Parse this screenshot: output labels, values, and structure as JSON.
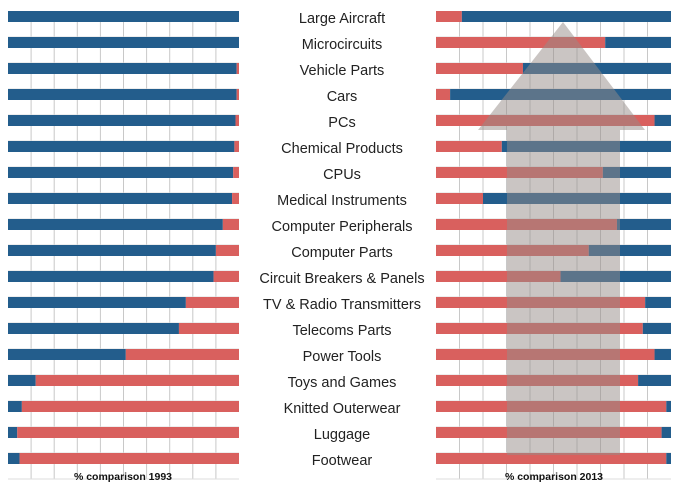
{
  "chart_data": {
    "type": "bar",
    "stacked_percent": true,
    "categories": [
      "Large Aircraft",
      "Microcircuits",
      "Vehicle Parts",
      "Cars",
      "PCs",
      "Chemical Products",
      "CPUs",
      "Medical Instruments",
      "Computer Peripherals",
      "Computer Parts",
      "Circuit Breakers & Panels",
      "TV  & Radio Transmitters",
      "Telecoms Parts",
      "Power Tools",
      "Toys and Games",
      "Knitted Outerwear",
      "Luggage",
      "Footwear"
    ],
    "charts": [
      {
        "title": "% comparison 1993",
        "xlim": [
          0,
          100
        ],
        "grid": true,
        "series": [
          {
            "name": "blue share",
            "color": "#235d8c",
            "values": [
              100,
              100,
              99,
              99,
              98.5,
              98,
              97.5,
              97,
              93,
              90,
              89,
              77,
              74,
              51,
              12,
              6,
              4,
              5
            ]
          },
          {
            "name": "red share",
            "color": "#d9605e",
            "values": [
              0,
              0,
              1,
              1,
              1.5,
              2,
              2.5,
              3,
              7,
              10,
              11,
              23,
              26,
              49,
              88,
              94,
              96,
              95
            ]
          }
        ]
      },
      {
        "title": "% comparison 2013",
        "xlim": [
          0,
          100
        ],
        "grid": true,
        "annotation": "upward arrow",
        "series": [
          {
            "name": "red share",
            "color": "#d9605e",
            "values": [
              11,
              72,
              37,
              6,
              93,
              28,
              71,
              20,
              77,
              65,
              53,
              89,
              88,
              93,
              86,
              98,
              96,
              98
            ]
          },
          {
            "name": "blue share",
            "color": "#235d8c",
            "values": [
              89,
              28,
              63,
              94,
              7,
              72,
              29,
              80,
              23,
              35,
              47,
              11,
              12,
              7,
              14,
              2,
              4,
              2
            ]
          }
        ]
      }
    ]
  }
}
